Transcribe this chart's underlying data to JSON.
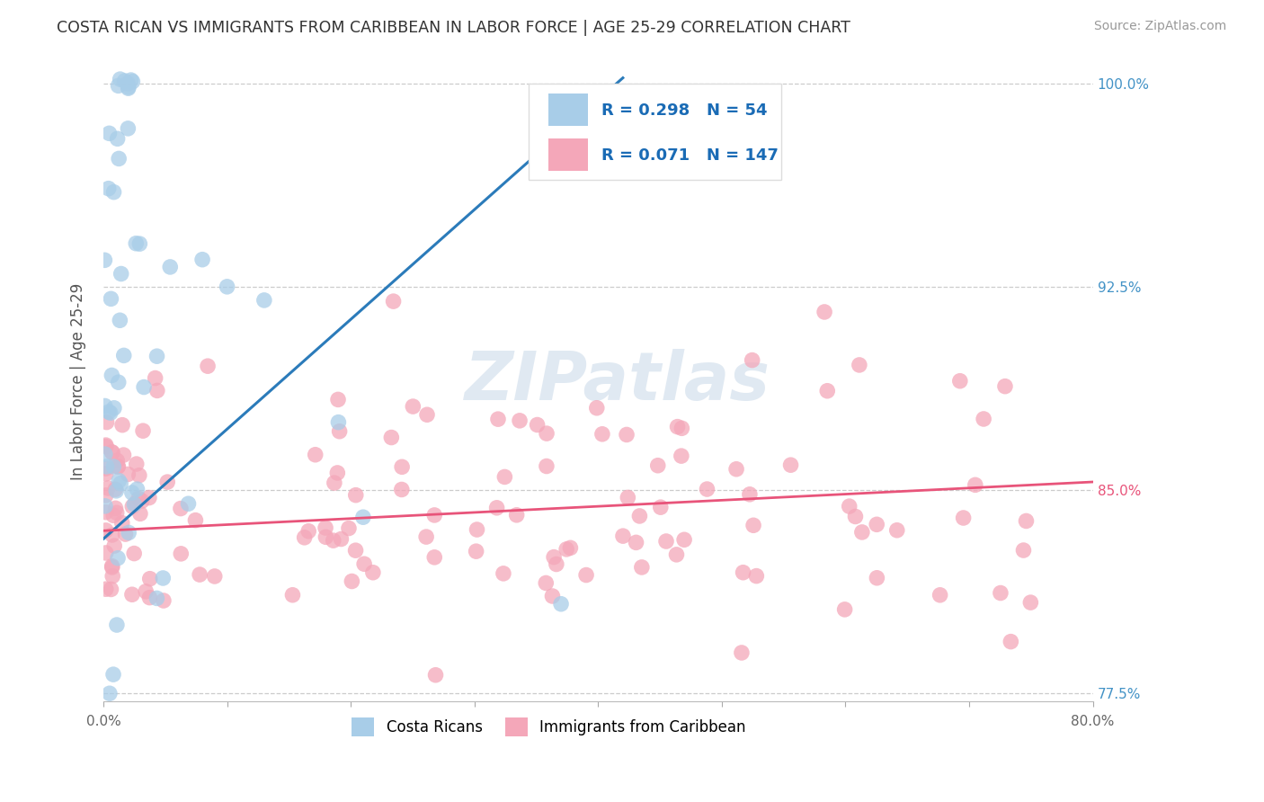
{
  "title": "COSTA RICAN VS IMMIGRANTS FROM CARIBBEAN IN LABOR FORCE | AGE 25-29 CORRELATION CHART",
  "source": "Source: ZipAtlas.com",
  "ylabel": "In Labor Force | Age 25-29",
  "xlim": [
    0.0,
    0.8
  ],
  "ylim": [
    0.772,
    1.008
  ],
  "yticks": [
    0.775,
    0.85,
    0.925,
    1.0
  ],
  "ytick_labels": [
    "77.5%",
    "85.0%",
    "92.5%",
    "100.0%"
  ],
  "xticks": [
    0.0,
    0.1,
    0.2,
    0.3,
    0.4,
    0.5,
    0.6,
    0.7,
    0.8
  ],
  "legend_r1": "0.298",
  "legend_n1": "54",
  "legend_r2": "0.071",
  "legend_n2": "147",
  "blue_color": "#a8cde8",
  "pink_color": "#f4a7b9",
  "blue_line_color": "#2b7bba",
  "pink_line_color": "#e8547a",
  "title_color": "#333333",
  "axis_label_color": "#555555",
  "right_tick_color_blue": "#4292c6",
  "right_tick_color_pink": "#e8547a",
  "watermark": "ZIPatlas",
  "blue_trend_x0": 0.0,
  "blue_trend_y0": 0.832,
  "blue_trend_x1": 0.42,
  "blue_trend_y1": 1.002,
  "pink_trend_x0": 0.0,
  "pink_trend_y0": 0.835,
  "pink_trend_x1": 0.8,
  "pink_trend_y1": 0.853
}
